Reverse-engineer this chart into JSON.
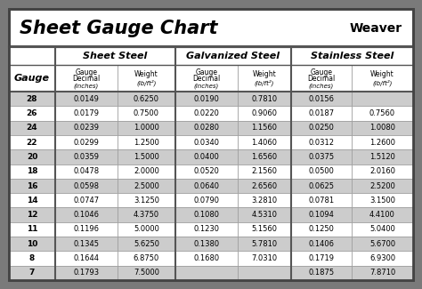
{
  "title": "Sheet Gauge Chart",
  "bg_outer": "#7a7a7a",
  "bg_inner": "#f0f0f0",
  "row_dark": "#cccccc",
  "row_light": "#ffffff",
  "border_color": "#444444",
  "cell_border": "#999999",
  "section_border": "#555555",
  "gauges": [
    28,
    26,
    24,
    22,
    20,
    18,
    16,
    14,
    12,
    11,
    10,
    8,
    7
  ],
  "sheet_steel_decimal": [
    "0.0149",
    "0.0179",
    "0.0239",
    "0.0299",
    "0.0359",
    "0.0478",
    "0.0598",
    "0.0747",
    "0.1046",
    "0.1196",
    "0.1345",
    "0.1644",
    "0.1793"
  ],
  "sheet_steel_weight": [
    "0.6250",
    "0.7500",
    "1.0000",
    "1.2500",
    "1.5000",
    "2.0000",
    "2.5000",
    "3.1250",
    "4.3750",
    "5.0000",
    "5.6250",
    "6.8750",
    "7.5000"
  ],
  "galv_decimal": [
    "0.0190",
    "0.0220",
    "0.0280",
    "0.0340",
    "0.0400",
    "0.0520",
    "0.0640",
    "0.0790",
    "0.1080",
    "0.1230",
    "0.1380",
    "0.1680",
    ""
  ],
  "galv_weight": [
    "0.7810",
    "0.9060",
    "1.1560",
    "1.4060",
    "1.6560",
    "2.1560",
    "2.6560",
    "3.2810",
    "4.5310",
    "5.1560",
    "5.7810",
    "7.0310",
    ""
  ],
  "ss_decimal": [
    "0.0156",
    "0.0187",
    "0.0250",
    "0.0312",
    "0.0375",
    "0.0500",
    "0.0625",
    "0.0781",
    "0.1094",
    "0.1250",
    "0.1406",
    "0.1719",
    "0.1875"
  ],
  "ss_weight": [
    "",
    "0.7560",
    "1.0080",
    "1.2600",
    "1.5120",
    "2.0160",
    "2.5200",
    "3.1500",
    "4.4100",
    "5.0400",
    "5.6700",
    "6.9300",
    "7.8710"
  ]
}
